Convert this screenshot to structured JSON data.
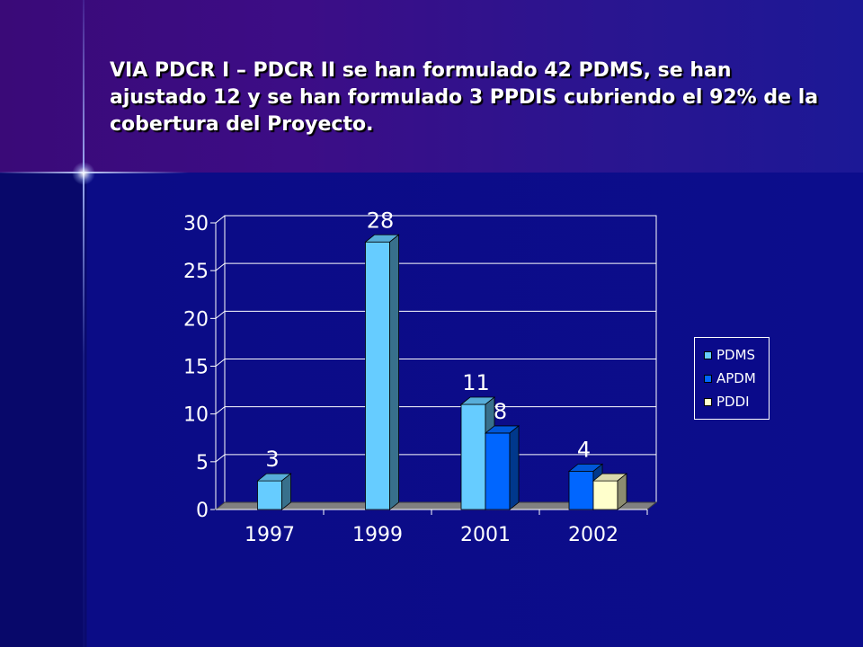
{
  "slide": {
    "title": "VIA PDCR I – PDCR II se han formulado 42 PDMS, se han ajustado 12 y se han formulado 3 PPDIS cubriendo el 92% de la cobertura del Proyecto."
  },
  "chart_data": {
    "type": "bar",
    "style": "3d-clustered-column",
    "categories": [
      "1997",
      "1999",
      "2001",
      "2002"
    ],
    "series": [
      {
        "name": "PDMS",
        "color": "#66ccff",
        "values": [
          3,
          28,
          11,
          0
        ],
        "labels": [
          "3",
          "28",
          "11",
          ""
        ]
      },
      {
        "name": "APDM",
        "color": "#0066ff",
        "values": [
          0,
          0,
          8,
          4
        ],
        "labels": [
          "",
          "",
          "8",
          "4"
        ]
      },
      {
        "name": "PDDI",
        "color": "#ffffcc",
        "values": [
          0,
          0,
          0,
          3
        ],
        "labels": [
          "",
          "",
          "",
          ""
        ]
      }
    ],
    "ylim": [
      0,
      30
    ],
    "yticks": [
      "0",
      "5",
      "10",
      "15",
      "20",
      "25",
      "30"
    ],
    "grid": true,
    "legend_position": "right",
    "colors": {
      "text": "#ffffff",
      "gridline": "#ffffff",
      "floor": "#808080"
    }
  }
}
